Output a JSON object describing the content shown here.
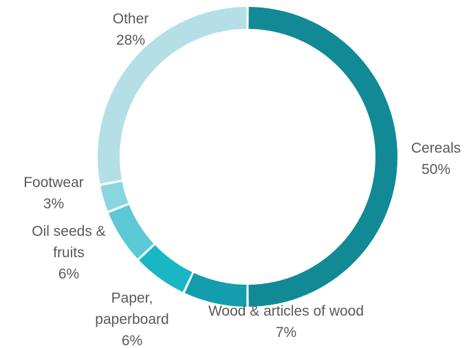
{
  "chart_data": {
    "type": "pie",
    "variant": "donut",
    "title": "",
    "slices": [
      {
        "label_lines": [
          "Cereals",
          "50%"
        ],
        "value": 50,
        "color": "#118a96"
      },
      {
        "label_lines": [
          "Wood & articles  of wood",
          "7%"
        ],
        "value": 7,
        "color": "#139dad"
      },
      {
        "label_lines": [
          "Paper,",
          "paperboard",
          "6%"
        ],
        "value": 6,
        "color": "#19b6c6"
      },
      {
        "label_lines": [
          "Oil seeds &",
          "fruits",
          "6%"
        ],
        "value": 6,
        "color": "#5bc9d6"
      },
      {
        "label_lines": [
          "Footwear",
          "3%"
        ],
        "value": 3,
        "color": "#8ad6e0"
      },
      {
        "label_lines": [
          "Other",
          "28%"
        ],
        "value": 28,
        "color": "#b4dfe6"
      }
    ],
    "legend": "none",
    "label_color": "#595959",
    "background": "#ffffff"
  }
}
